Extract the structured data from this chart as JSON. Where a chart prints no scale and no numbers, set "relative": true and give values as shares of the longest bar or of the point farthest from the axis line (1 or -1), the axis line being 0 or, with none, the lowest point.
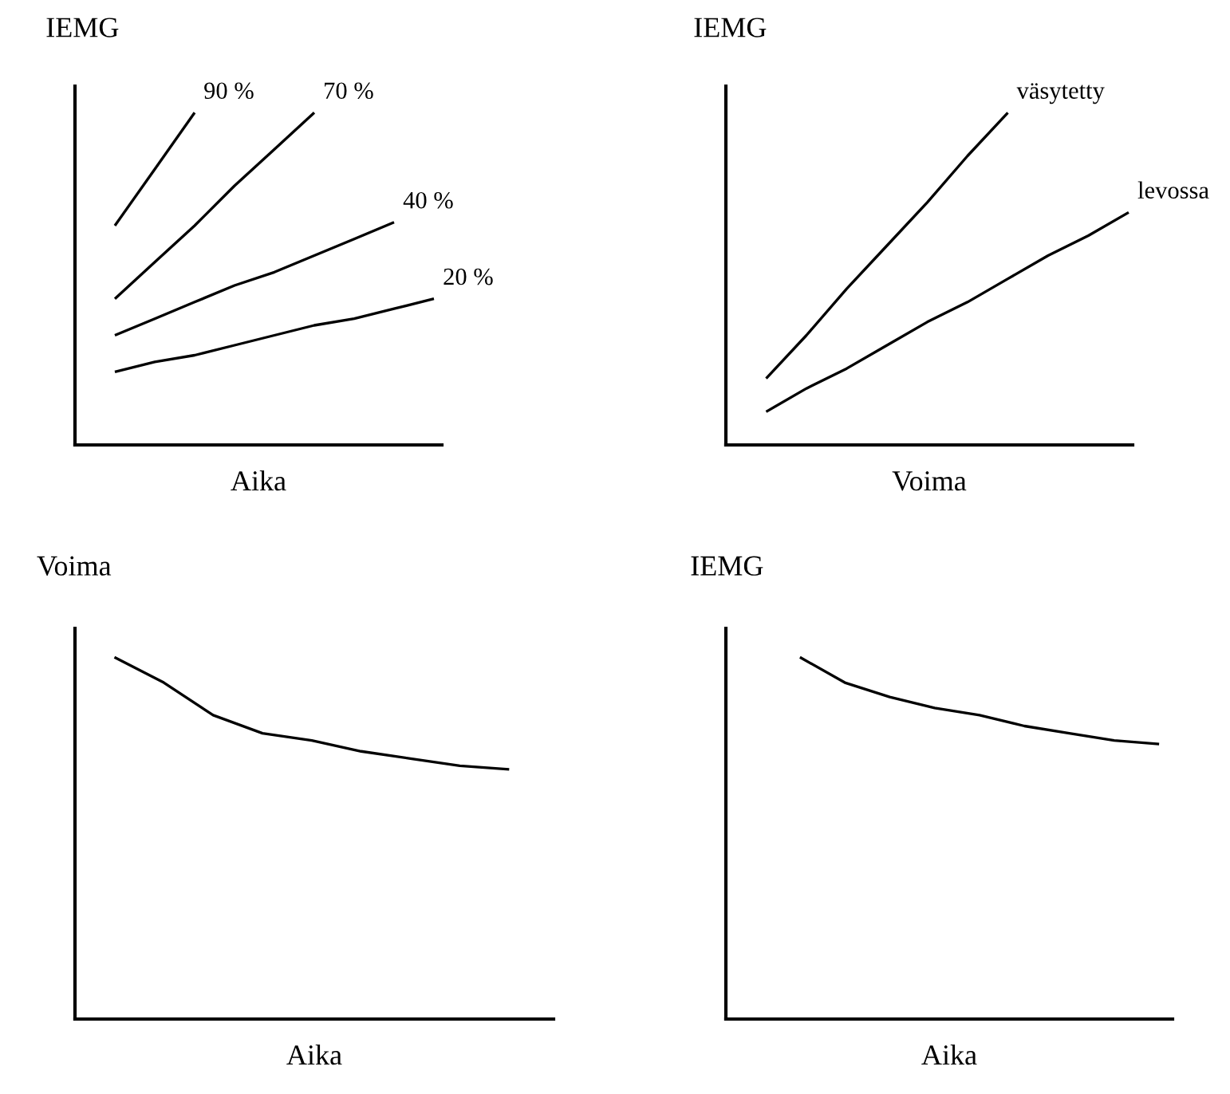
{
  "chart_data": [
    {
      "type": "line",
      "relative": true,
      "xlabel": "Aika",
      "ylabel": "IEMG",
      "categories": [
        null,
        null,
        null,
        null,
        null,
        null,
        null,
        null,
        null
      ],
      "series": [
        {
          "name": "90 %",
          "color": "#000000",
          "values": [
            0.66,
            0.83,
            1.0,
            null,
            null,
            null,
            null,
            null,
            null
          ]
        },
        {
          "name": "70 %",
          "color": "#000000",
          "values": [
            0.44,
            0.55,
            0.66,
            0.78,
            0.89,
            1.0,
            null,
            null,
            null
          ]
        },
        {
          "name": "40 %",
          "color": "#000000",
          "values": [
            0.33,
            0.38,
            0.43,
            0.48,
            0.52,
            0.57,
            0.62,
            0.67,
            null
          ]
        },
        {
          "name": "20 %",
          "color": "#000000",
          "values": [
            0.22,
            0.25,
            0.27,
            0.3,
            0.33,
            0.36,
            0.38,
            0.41,
            0.44
          ]
        }
      ]
    },
    {
      "type": "line",
      "relative": true,
      "xlabel": "Voima",
      "ylabel": "IEMG",
      "categories": [
        null,
        null,
        null,
        null,
        null,
        null,
        null,
        null,
        null,
        null
      ],
      "series": [
        {
          "name": "väsytetty",
          "color": "#000000",
          "values": [
            0.2,
            0.33,
            0.47,
            0.6,
            0.73,
            0.87,
            1.0,
            null,
            null,
            null
          ]
        },
        {
          "name": "levossa",
          "color": "#000000",
          "values": [
            0.1,
            0.17,
            0.23,
            0.3,
            0.37,
            0.43,
            0.5,
            0.57,
            0.63,
            0.7
          ]
        }
      ]
    },
    {
      "type": "line",
      "relative": true,
      "xlabel": "Aika",
      "ylabel": "Voima",
      "categories": [
        null,
        null,
        null,
        null,
        null,
        null,
        null,
        null,
        null
      ],
      "series": [
        {
          "color": "#000000",
          "values": [
            1.0,
            0.93,
            0.84,
            0.79,
            0.77,
            0.74,
            0.72,
            0.7,
            0.69
          ]
        }
      ]
    },
    {
      "type": "line",
      "relative": true,
      "xlabel": "Aika",
      "ylabel": "IEMG",
      "categories": [
        null,
        null,
        null,
        null,
        null,
        null,
        null,
        null,
        null
      ],
      "series": [
        {
          "color": "#000000",
          "values": [
            1.0,
            0.93,
            0.89,
            0.86,
            0.84,
            0.81,
            0.79,
            0.77,
            0.76
          ]
        }
      ]
    }
  ]
}
